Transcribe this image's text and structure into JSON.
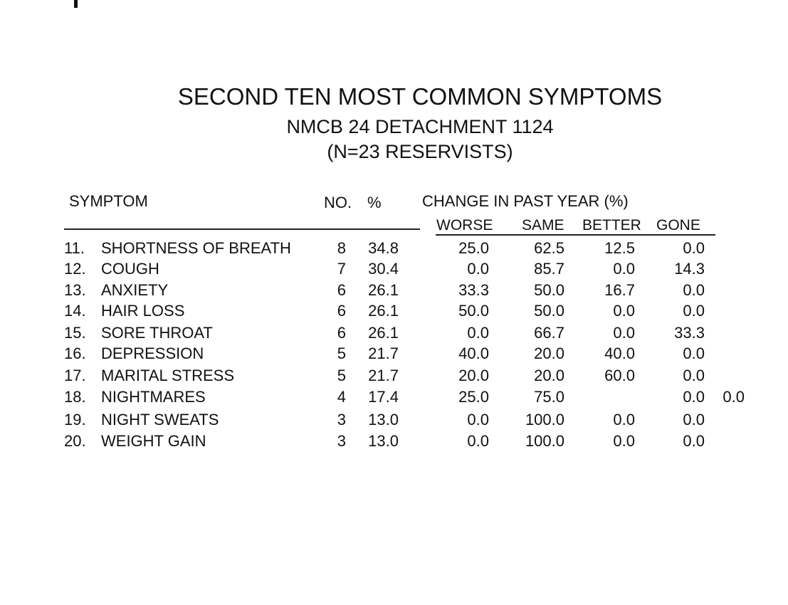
{
  "title": "SECOND TEN MOST COMMON SYMPTOMS",
  "subtitle": "NMCB 24 DETACHMENT 1124",
  "sample": "(N=23 RESERVISTS)",
  "headers": {
    "symptom": "SYMPTOM",
    "no": "NO.",
    "pct": "%",
    "change": "CHANGE IN PAST YEAR (%)",
    "worse": "WORSE",
    "same": "SAME",
    "better": "BETTER",
    "gone": "GONE"
  },
  "rows": [
    {
      "rank": "11.",
      "symptom": "SHORTNESS OF BREATH",
      "no": "8",
      "pct": "34.8",
      "worse": "25.0",
      "same": "62.5",
      "better": "12.5",
      "gone": "0.0",
      "extra": ""
    },
    {
      "rank": "12.",
      "symptom": "COUGH",
      "no": "7",
      "pct": "30.4",
      "worse": "0.0",
      "same": "85.7",
      "better": "0.0",
      "gone": "14.3",
      "extra": ""
    },
    {
      "rank": "13.",
      "symptom": "ANXIETY",
      "no": "6",
      "pct": "26.1",
      "worse": "33.3",
      "same": "50.0",
      "better": "16.7",
      "gone": "0.0",
      "extra": ""
    },
    {
      "rank": "14.",
      "symptom": "HAIR LOSS",
      "no": "6",
      "pct": "26.1",
      "worse": "50.0",
      "same": "50.0",
      "better": "0.0",
      "gone": "0.0",
      "extra": ""
    },
    {
      "rank": "15.",
      "symptom": "SORE THROAT",
      "no": "6",
      "pct": "26.1",
      "worse": "0.0",
      "same": "66.7",
      "better": "0.0",
      "gone": "33.3",
      "extra": ""
    },
    {
      "rank": "16.",
      "symptom": "DEPRESSION",
      "no": "5",
      "pct": "21.7",
      "worse": "40.0",
      "same": "20.0",
      "better": "40.0",
      "gone": "0.0",
      "extra": ""
    },
    {
      "rank": "17.",
      "symptom": "MARITAL STRESS",
      "no": "5",
      "pct": "21.7",
      "worse": "20.0",
      "same": "20.0",
      "better": "60.0",
      "gone": "0.0",
      "extra": ""
    },
    {
      "rank": "18.",
      "symptom": "NIGHTMARES",
      "no": "4",
      "pct": "17.4",
      "worse": "25.0",
      "same": "75.0",
      "better": "",
      "gone": "0.0",
      "extra": "0.0"
    },
    {
      "rank": "19.",
      "symptom": "NIGHT SWEATS",
      "no": "3",
      "pct": "13.0",
      "worse": "0.0",
      "same": "100.0",
      "better": "0.0",
      "gone": "0.0",
      "extra": ""
    },
    {
      "rank": "20.",
      "symptom": "WEIGHT GAIN",
      "no": "3",
      "pct": "13.0",
      "worse": "0.0",
      "same": "100.0",
      "better": "0.0",
      "gone": "0.0",
      "extra": ""
    }
  ]
}
